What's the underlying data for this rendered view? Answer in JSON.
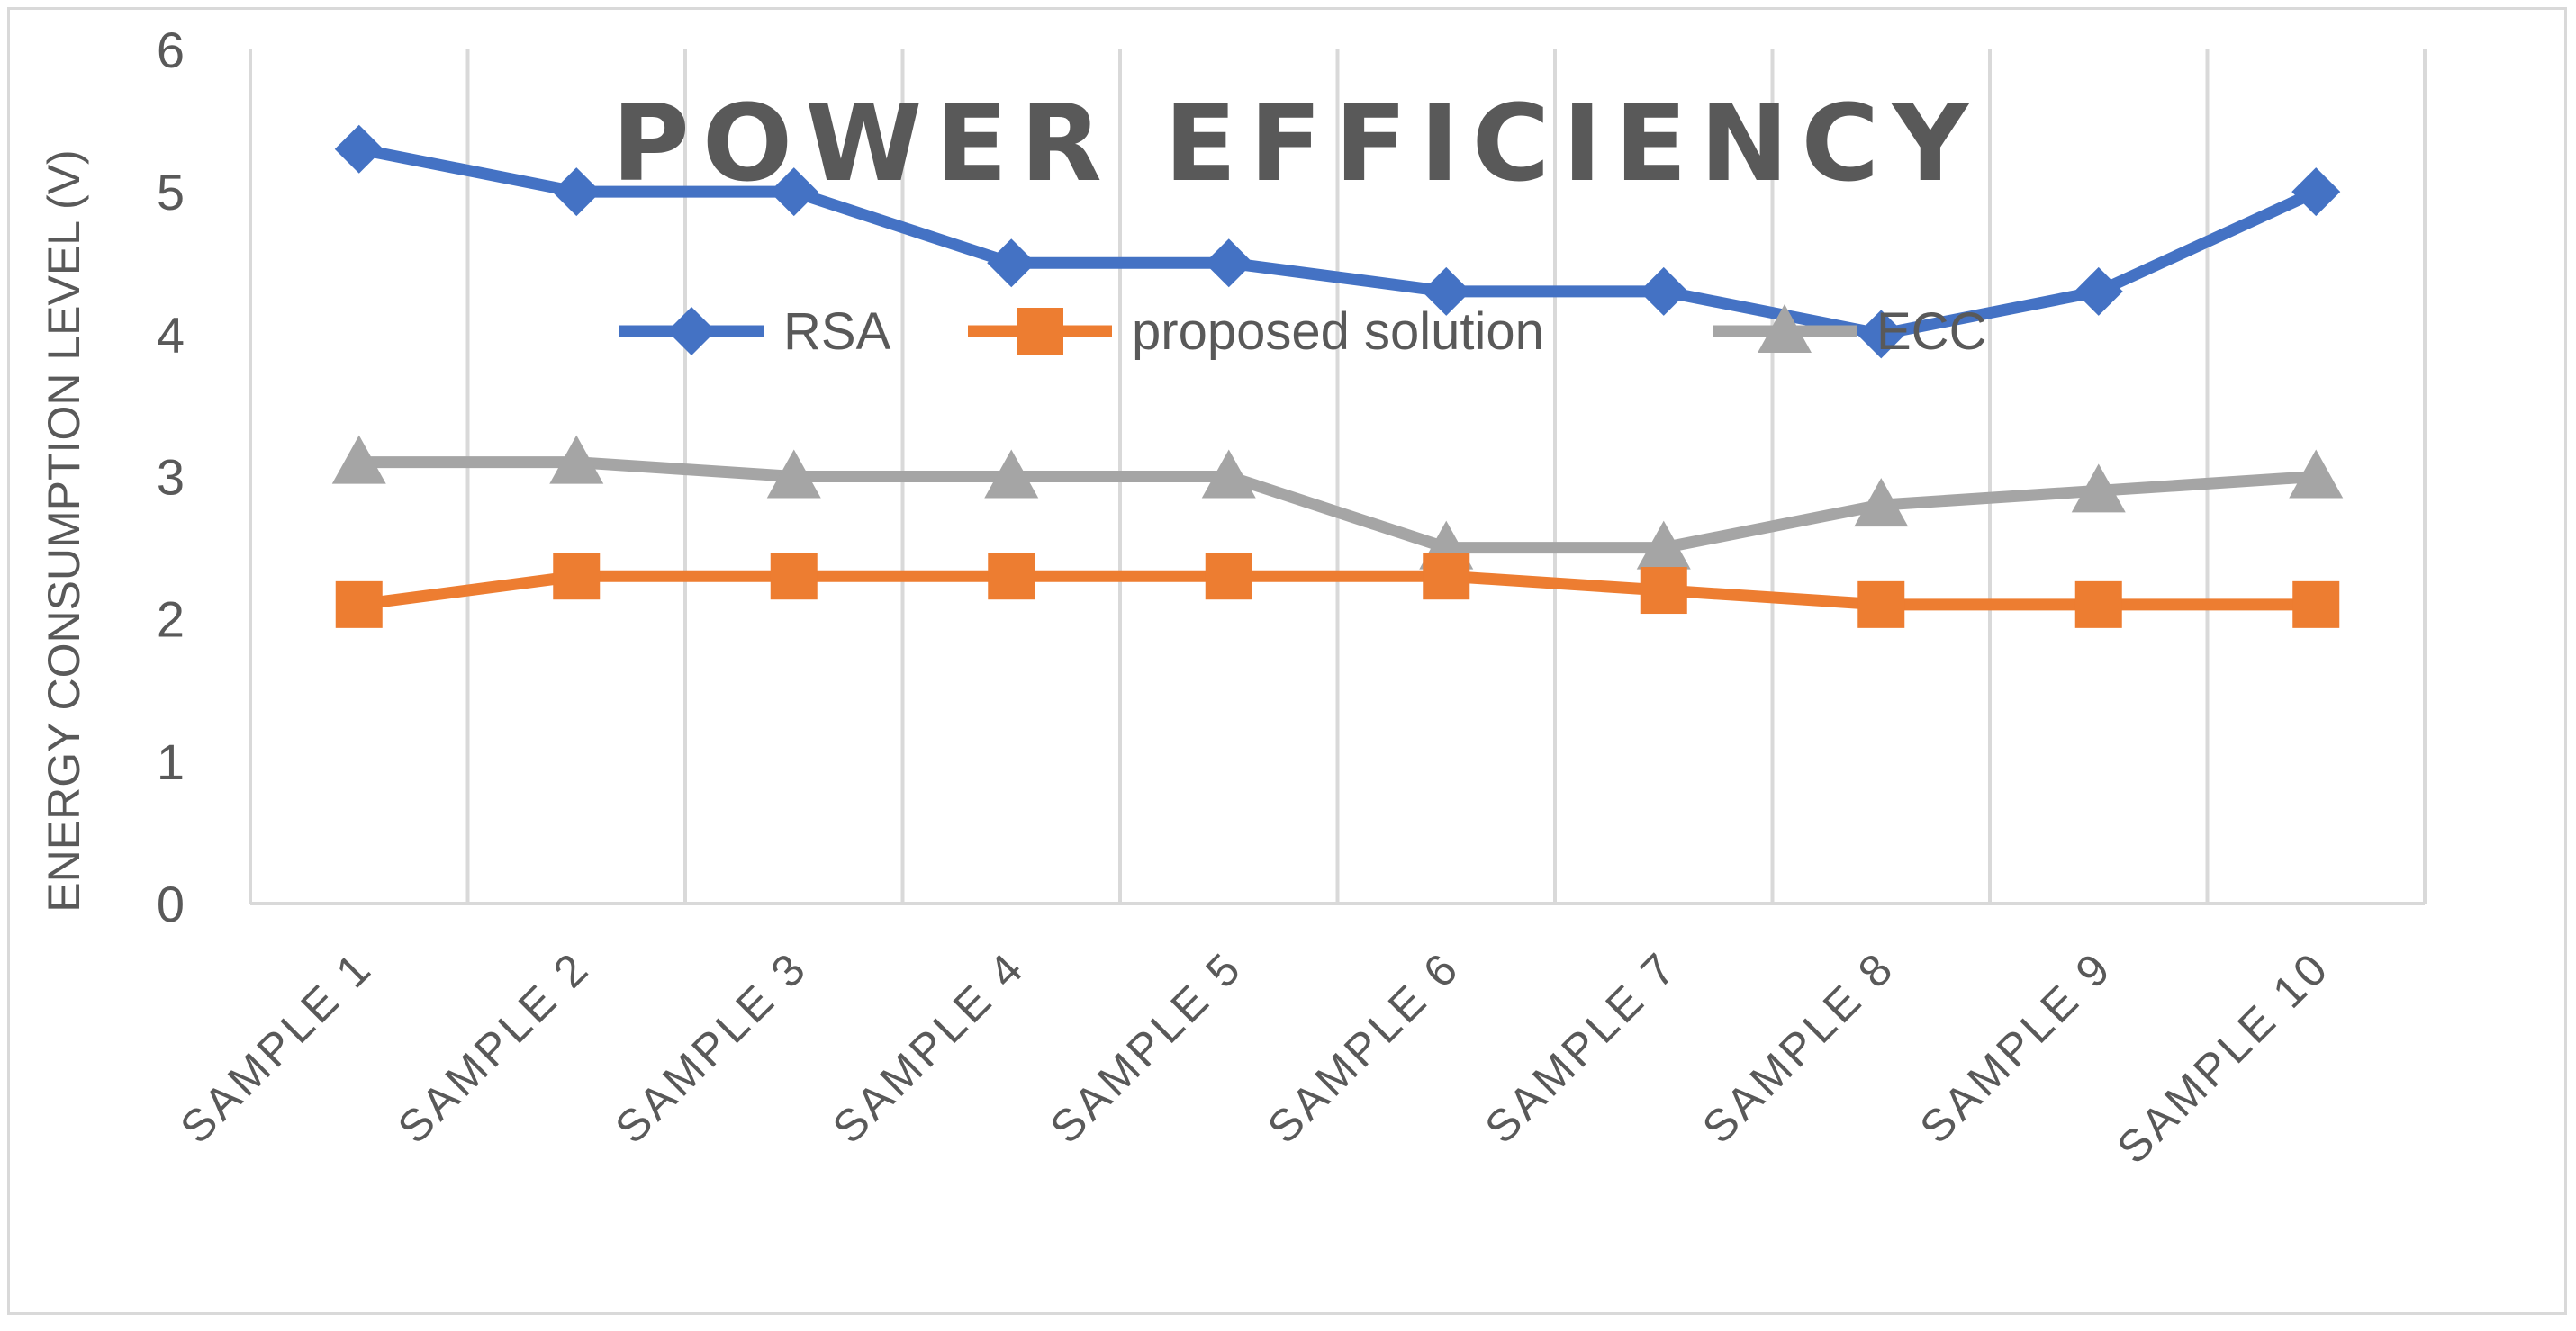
{
  "chart_data": {
    "type": "line",
    "title": "POWER EFFICIENCY",
    "xlabel": "",
    "ylabel": "ENERGY CONSUMPTION LEVEL (V)",
    "ylim": [
      0,
      6
    ],
    "yticks": [
      0,
      1,
      2,
      3,
      4,
      5,
      6
    ],
    "grid": "vertical",
    "legend_position": "top-center",
    "categories": [
      "SAMPLE 1",
      "SAMPLE 2",
      "SAMPLE 3",
      "SAMPLE 4",
      "SAMPLE 5",
      "SAMPLE 6",
      "SAMPLE 7",
      "SAMPLE 8",
      "SAMPLE 9",
      "SAMPLE 10"
    ],
    "series": [
      {
        "name": "RSA",
        "color": "#4472c4",
        "marker": "diamond",
        "values": [
          5.3,
          5.0,
          5.0,
          4.5,
          4.5,
          4.3,
          4.3,
          4.0,
          4.3,
          5.0
        ]
      },
      {
        "name": "proposed solution",
        "color": "#ed7d31",
        "marker": "square",
        "values": [
          2.1,
          2.3,
          2.3,
          2.3,
          2.3,
          2.3,
          2.2,
          2.1,
          2.1,
          2.1
        ]
      },
      {
        "name": "ECC",
        "color": "#a5a5a5",
        "marker": "triangle",
        "values": [
          3.1,
          3.1,
          3.0,
          3.0,
          3.0,
          2.5,
          2.5,
          2.8,
          2.9,
          3.0
        ]
      }
    ]
  }
}
